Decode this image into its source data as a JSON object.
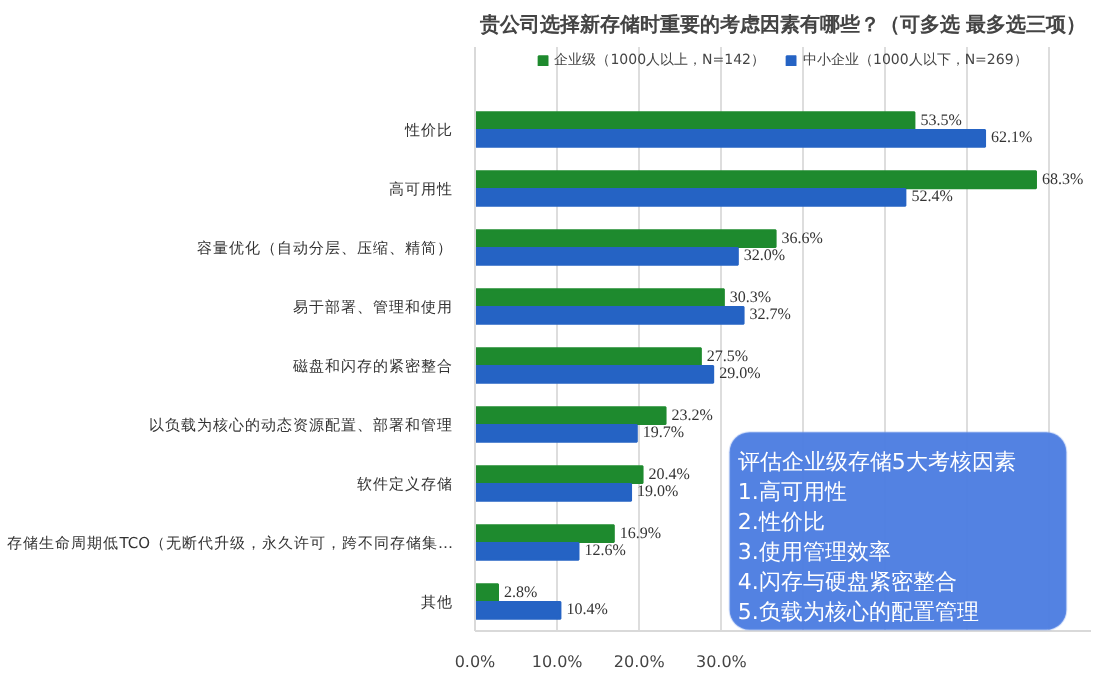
{
  "chart_data": {
    "type": "bar",
    "orientation": "horizontal",
    "title": "贵公司选择新存储时重要的考虑因素有哪些？（可多选 最多选三项）",
    "categories": [
      "性价比",
      "高可用性",
      "容量优化（自动分层、压缩、精简）",
      "易于部署、管理和使用",
      "磁盘和闪存的紧密整合",
      "以负载为核心的动态资源配置、部署和管理",
      "软件定义存储",
      "存储生命周期低TCO（无断代升级，永久许可，跨不同存储集…",
      "其他"
    ],
    "series": [
      {
        "name": "企业级（1000人以上，N=142）",
        "color": "#1e8a2e",
        "values": [
          53.5,
          68.3,
          36.6,
          30.3,
          27.5,
          23.2,
          20.4,
          16.9,
          2.8
        ],
        "value_labels": [
          "53.5%",
          "68.3%",
          "36.6%",
          "30.3%",
          "27.5%",
          "23.2%",
          "20.4%",
          "16.9%",
          "2.8%"
        ]
      },
      {
        "name": "中小企业（1000人以下，N=269）",
        "color": "#2563c4",
        "values": [
          62.1,
          52.4,
          32.0,
          32.7,
          29.0,
          19.7,
          19.0,
          12.6,
          10.4
        ],
        "value_labels": [
          "62.1%",
          "52.4%",
          "32.0%",
          "32.7%",
          "29.0%",
          "19.7%",
          "19.0%",
          "12.6%",
          "10.4%"
        ]
      }
    ],
    "xlim": [
      0,
      75
    ],
    "xticks": [
      {
        "value": 0,
        "label": "0.0%"
      },
      {
        "value": 10,
        "label": "10.0%"
      },
      {
        "value": 20,
        "label": "20.0%"
      },
      {
        "value": 30,
        "label": "30.0%"
      },
      {
        "value": 40,
        "label": null
      },
      {
        "value": 50,
        "label": null
      },
      {
        "value": 60,
        "label": null
      },
      {
        "value": 70,
        "label": null
      }
    ],
    "grid": "x",
    "legend": "top",
    "annotations": [
      "评估企业级存储5大考核因素",
      "1.高可用性",
      "2.性价比",
      "3.使用管理效率",
      "4.闪存与硬盘紧密整合",
      "5.负载为核心的配置管理"
    ]
  }
}
